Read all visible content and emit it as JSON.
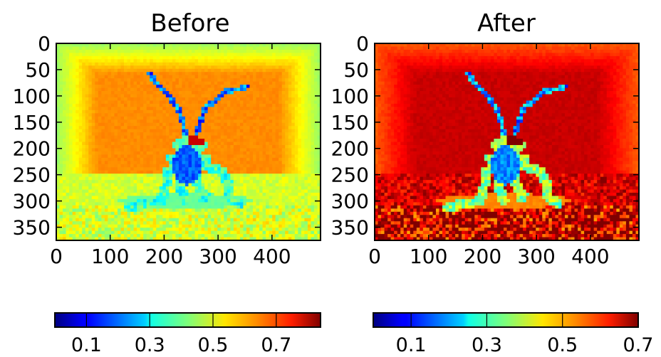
{
  "chart_data": [
    {
      "type": "heatmap",
      "title": "Before",
      "xlim": [
        0,
        490
      ],
      "ylim": [
        375,
        0
      ],
      "xticks": [
        "0",
        "100",
        "200",
        "300",
        "400"
      ],
      "yticks": [
        "0",
        "50",
        "100",
        "150",
        "200",
        "250",
        "300",
        "350"
      ],
      "grid": false,
      "colormap": "jet",
      "colorbar": {
        "range": [
          0.0,
          0.84
        ],
        "ticks": [
          "0.1",
          "0.3",
          "0.5",
          "0.7"
        ],
        "orientation": "horizontal",
        "placement": "below"
      },
      "background_level": 0.62,
      "subject_level": 0.18
    },
    {
      "type": "heatmap",
      "title": "After",
      "xlim": [
        0,
        490
      ],
      "ylim": [
        375,
        0
      ],
      "xticks": [
        "0",
        "100",
        "200",
        "300",
        "400"
      ],
      "yticks": [
        "0",
        "50",
        "100",
        "150",
        "200",
        "250",
        "300",
        "350"
      ],
      "grid": false,
      "colormap": "jet",
      "colorbar": {
        "range": [
          0.0,
          0.7
        ],
        "ticks": [
          "0.1",
          "0.3",
          "0.5",
          "0.7"
        ],
        "orientation": "horizontal",
        "placement": "below"
      },
      "background_level": 0.58,
      "subject_level": 0.18
    }
  ]
}
